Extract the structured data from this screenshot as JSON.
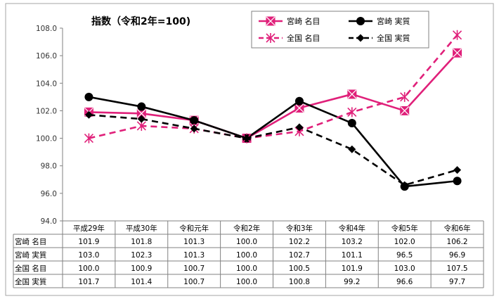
{
  "chart_data": {
    "type": "line",
    "title": "指数（令和2年=100)",
    "categories": [
      "平成29年",
      "平成30年",
      "令和元年",
      "令和2年",
      "令和3年",
      "令和4年",
      "令和5年",
      "令和6年"
    ],
    "ylim": [
      94.0,
      108.0
    ],
    "y_ticks": [
      "94.0",
      "96.0",
      "98.0",
      "100.0",
      "102.0",
      "104.0",
      "106.0",
      "108.0"
    ],
    "grid": false,
    "legend_position": "top-right",
    "series": [
      {
        "name": "宮崎 名目",
        "color": "#e0207a",
        "dash": "solid",
        "marker": "square-x",
        "values": [
          101.9,
          101.8,
          101.3,
          100.0,
          102.2,
          103.2,
          102.0,
          106.2
        ],
        "labels": [
          "101.9",
          "101.8",
          "101.3",
          "100.0",
          "102.2",
          "103.2",
          "102.0",
          "106.2"
        ]
      },
      {
        "name": "宮崎 実質",
        "color": "#000000",
        "dash": "solid",
        "marker": "circle",
        "values": [
          103.0,
          102.3,
          101.3,
          100.0,
          102.7,
          101.1,
          96.5,
          96.9
        ],
        "labels": [
          "103.0",
          "102.3",
          "101.3",
          "100.0",
          "102.7",
          "101.1",
          "96.5",
          "96.9"
        ]
      },
      {
        "name": "全国 名目",
        "color": "#e0207a",
        "dash": "dashed",
        "marker": "star",
        "values": [
          100.0,
          100.9,
          100.7,
          100.0,
          100.5,
          101.9,
          103.0,
          107.5
        ],
        "labels": [
          "100.0",
          "100.9",
          "100.7",
          "100.0",
          "100.5",
          "101.9",
          "103.0",
          "107.5"
        ]
      },
      {
        "name": "全国 実質",
        "color": "#000000",
        "dash": "dashed",
        "marker": "diamond",
        "values": [
          101.7,
          101.4,
          100.7,
          100.0,
          100.8,
          99.2,
          96.6,
          97.7
        ],
        "labels": [
          "101.7",
          "101.4",
          "100.7",
          "100.0",
          "100.8",
          "99.2",
          "96.6",
          "97.7"
        ]
      }
    ]
  }
}
